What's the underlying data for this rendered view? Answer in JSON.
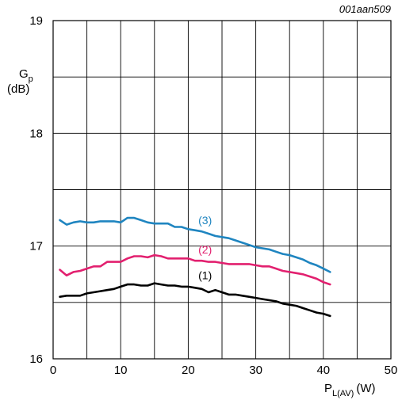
{
  "chart_data": {
    "type": "line",
    "figure_code": "001aan509",
    "ylabel": {
      "main": "G",
      "sub": "p",
      "unit": "(dB)"
    },
    "xlabel": {
      "main": "P",
      "sub": "L(AV)",
      "unit": "(W)"
    },
    "xlim": [
      0,
      50
    ],
    "ylim": [
      16,
      19
    ],
    "x_ticks": [
      0,
      10,
      20,
      30,
      40,
      50
    ],
    "y_ticks": [
      16,
      17,
      18,
      19
    ],
    "grid": true,
    "series": [
      {
        "name": "(1)",
        "color": "#000000",
        "x": [
          1,
          2,
          3,
          4,
          5,
          6,
          7,
          8,
          9,
          10,
          11,
          12,
          13,
          14,
          15,
          16,
          17,
          18,
          19,
          20,
          21,
          22,
          23,
          24,
          25,
          26,
          27,
          28,
          29,
          30,
          31,
          32,
          33,
          34,
          35,
          36,
          37,
          38,
          39,
          40,
          41
        ],
        "values": [
          16.55,
          16.56,
          16.56,
          16.56,
          16.58,
          16.59,
          16.6,
          16.61,
          16.62,
          16.64,
          16.66,
          16.66,
          16.65,
          16.65,
          16.67,
          16.66,
          16.65,
          16.65,
          16.64,
          16.64,
          16.63,
          16.62,
          16.59,
          16.61,
          16.59,
          16.57,
          16.57,
          16.56,
          16.55,
          16.54,
          16.53,
          16.52,
          16.51,
          16.49,
          16.48,
          16.47,
          16.45,
          16.43,
          16.41,
          16.4,
          16.38
        ]
      },
      {
        "name": "(2)",
        "color": "#e2206f",
        "x": [
          1,
          2,
          3,
          4,
          5,
          6,
          7,
          8,
          9,
          10,
          11,
          12,
          13,
          14,
          15,
          16,
          17,
          18,
          19,
          20,
          21,
          22,
          23,
          24,
          25,
          26,
          27,
          28,
          29,
          30,
          31,
          32,
          33,
          34,
          35,
          36,
          37,
          38,
          39,
          40,
          41
        ],
        "values": [
          16.79,
          16.74,
          16.77,
          16.78,
          16.8,
          16.82,
          16.82,
          16.86,
          16.86,
          16.86,
          16.89,
          16.91,
          16.91,
          16.9,
          16.92,
          16.91,
          16.89,
          16.89,
          16.89,
          16.89,
          16.87,
          16.87,
          16.86,
          16.86,
          16.85,
          16.84,
          16.84,
          16.84,
          16.84,
          16.83,
          16.82,
          16.82,
          16.8,
          16.78,
          16.77,
          16.76,
          16.75,
          16.73,
          16.71,
          16.68,
          16.66
        ]
      },
      {
        "name": "(3)",
        "color": "#1f85c0",
        "x": [
          1,
          2,
          3,
          4,
          5,
          6,
          7,
          8,
          9,
          10,
          11,
          12,
          13,
          14,
          15,
          16,
          17,
          18,
          19,
          20,
          21,
          22,
          23,
          24,
          25,
          26,
          27,
          28,
          29,
          30,
          31,
          32,
          33,
          34,
          35,
          36,
          37,
          38,
          39,
          40,
          41
        ],
        "values": [
          17.23,
          17.19,
          17.21,
          17.22,
          17.21,
          17.21,
          17.22,
          17.22,
          17.22,
          17.21,
          17.25,
          17.25,
          17.23,
          17.21,
          17.2,
          17.2,
          17.2,
          17.17,
          17.17,
          17.15,
          17.14,
          17.13,
          17.11,
          17.09,
          17.08,
          17.07,
          17.05,
          17.03,
          17.01,
          16.99,
          16.98,
          16.97,
          16.95,
          16.93,
          16.92,
          16.9,
          16.88,
          16.85,
          16.83,
          16.8,
          16.77
        ]
      }
    ],
    "series_labels": [
      {
        "text": "(1)",
        "x": 22.5,
        "y": 16.74,
        "color": "#000000"
      },
      {
        "text": "(2)",
        "x": 22.5,
        "y": 16.97,
        "color": "#e2206f"
      },
      {
        "text": "(3)",
        "x": 22.5,
        "y": 17.23,
        "color": "#1f85c0"
      }
    ]
  }
}
